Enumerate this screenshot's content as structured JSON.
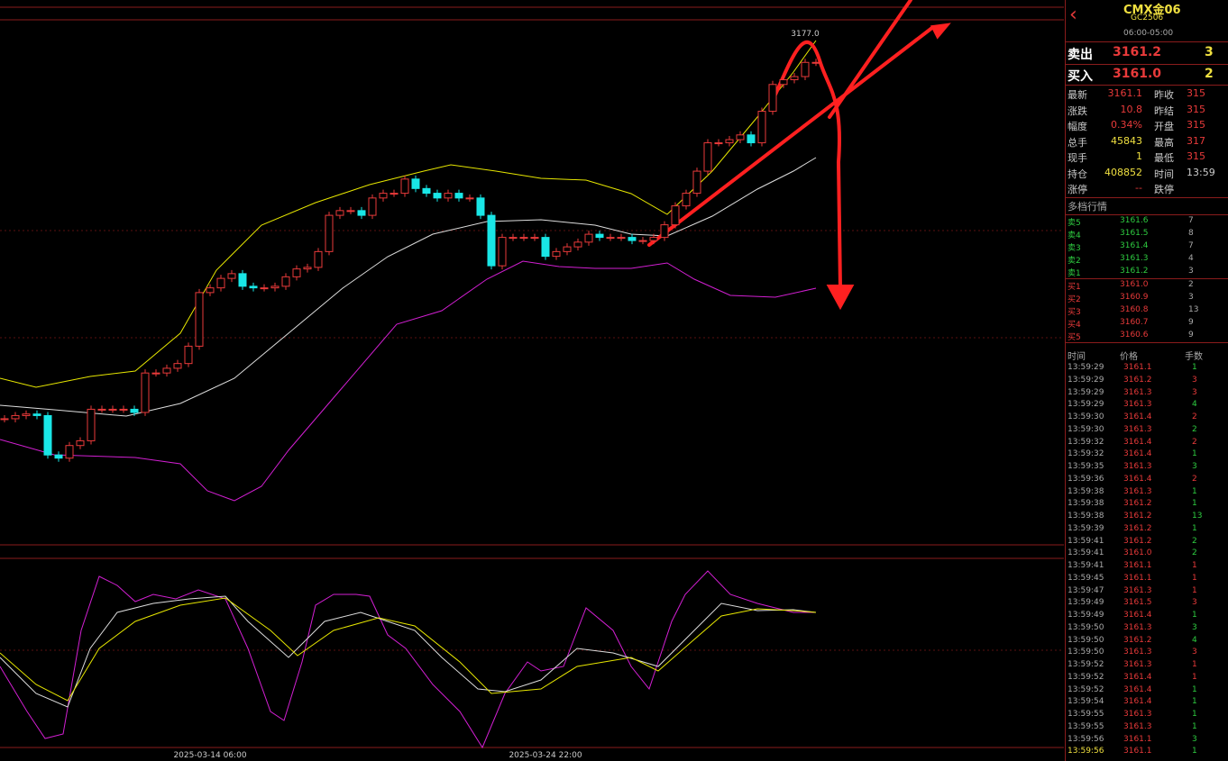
{
  "chart_data": {
    "type": "candlestick",
    "max_label": "3177.0",
    "ylim": [
      2855,
      3188
    ],
    "up_color": "#e83a3a",
    "down_color": "#19e6e6",
    "categories": [
      null,
      null,
      null,
      null,
      null,
      null,
      null,
      null,
      null,
      null,
      null,
      null,
      null,
      null,
      null,
      null,
      null,
      null,
      null,
      "2025-03-14 06:00",
      null,
      null,
      null,
      null,
      null,
      null,
      null,
      null,
      null,
      null,
      null,
      null,
      null,
      null,
      null,
      null,
      null,
      null,
      null,
      null,
      null,
      null,
      null,
      null,
      null,
      null,
      null,
      null,
      null,
      null,
      "2025-03-24 22:00",
      null,
      null,
      null,
      null,
      null,
      null,
      null,
      null,
      null,
      null,
      null,
      null,
      null,
      null,
      null,
      null,
      null,
      null,
      null,
      null,
      null,
      null,
      null,
      null,
      null
    ],
    "values": [
      2935,
      2937,
      2938,
      2937,
      2912,
      2910,
      2918,
      2921,
      2941,
      2941,
      2941,
      2941,
      2939,
      2964,
      2964,
      2967,
      2970,
      2981,
      3015,
      3018,
      3024,
      3027,
      3019,
      3018,
      3018,
      3019,
      3025,
      3030,
      3031,
      3041,
      3064,
      3067,
      3067,
      3064,
      3075,
      3078,
      3078,
      3087,
      3081,
      3078,
      3075,
      3078,
      3075,
      3075,
      3064,
      3032,
      3050,
      3050,
      3050,
      3050,
      3038,
      3041,
      3044,
      3047,
      3052,
      3050,
      3050,
      3050,
      3048,
      3048,
      3050,
      3058,
      3070,
      3078,
      3092,
      3110,
      3110,
      3112,
      3115,
      3110,
      3130,
      3147,
      3150,
      3152,
      3161,
      3161
    ]
  },
  "header": {
    "symbol": "CMX金06",
    "code": "GC2506",
    "hours": "06:00-05:00"
  },
  "quote": {
    "sell": {
      "label": "卖出",
      "price": "3161.2",
      "volume": "3"
    },
    "buy": {
      "label": "买入",
      "price": "3161.0",
      "volume": "2"
    }
  },
  "stats": [
    [
      "最新",
      "3161.1",
      "昨收",
      "315"
    ],
    [
      "涨跌",
      "10.8",
      "昨结",
      "315"
    ],
    [
      "幅度",
      "0.34%",
      "开盘",
      "315"
    ],
    [
      "总手",
      "45843",
      "最高",
      "317"
    ],
    [
      "现手",
      "1",
      "最低",
      "315"
    ],
    [
      "持仓",
      "408852",
      "时间",
      "13:59"
    ],
    [
      "涨停",
      "--",
      "跌停"
    ]
  ],
  "depth": {
    "title": "多档行情",
    "asks": [
      [
        "卖5",
        "3161.6",
        "7"
      ],
      [
        "卖4",
        "3161.5",
        "8"
      ],
      [
        "卖3",
        "3161.4",
        "7"
      ],
      [
        "卖2",
        "3161.3",
        "4"
      ],
      [
        "卖1",
        "3161.2",
        "3"
      ]
    ],
    "bids": [
      [
        "买1",
        "3161.0",
        "2"
      ],
      [
        "买2",
        "3160.9",
        "3"
      ],
      [
        "买3",
        "3160.8",
        "13"
      ],
      [
        "买4",
        "3160.7",
        "9"
      ],
      [
        "买5",
        "3160.6",
        "9"
      ]
    ]
  },
  "ticks": {
    "headers": [
      "时间",
      "价格",
      "手数"
    ],
    "rows": [
      {
        "time": "13:59:29",
        "price": "3161.1",
        "volume": "1",
        "color": "#2ecc40"
      },
      {
        "time": "13:59:29",
        "price": "3161.2",
        "volume": "3",
        "color": "#e83a3a"
      },
      {
        "time": "13:59:29",
        "price": "3161.3",
        "volume": "3",
        "color": "#e83a3a"
      },
      {
        "time": "13:59:29",
        "price": "3161.3",
        "volume": "4",
        "color": "#2ecc40"
      },
      {
        "time": "13:59:30",
        "price": "3161.4",
        "volume": "2",
        "color": "#e83a3a"
      },
      {
        "time": "13:59:30",
        "price": "3161.3",
        "volume": "2",
        "color": "#2ecc40"
      },
      {
        "time": "13:59:32",
        "price": "3161.4",
        "volume": "2",
        "color": "#e83a3a"
      },
      {
        "time": "13:59:32",
        "price": "3161.4",
        "volume": "1",
        "color": "#2ecc40"
      },
      {
        "time": "13:59:35",
        "price": "3161.3",
        "volume": "3",
        "color": "#2ecc40"
      },
      {
        "time": "13:59:36",
        "price": "3161.4",
        "volume": "2",
        "color": "#e83a3a"
      },
      {
        "time": "13:59:38",
        "price": "3161.3",
        "volume": "1",
        "color": "#2ecc40"
      },
      {
        "time": "13:59:38",
        "price": "3161.2",
        "volume": "1",
        "color": "#2ecc40"
      },
      {
        "time": "13:59:38",
        "price": "3161.2",
        "volume": "13",
        "color": "#2ecc40"
      },
      {
        "time": "13:59:39",
        "price": "3161.2",
        "volume": "1",
        "color": "#2ecc40"
      },
      {
        "time": "13:59:41",
        "price": "3161.2",
        "volume": "2",
        "color": "#2ecc40"
      },
      {
        "time": "13:59:41",
        "price": "3161.0",
        "volume": "2",
        "color": "#2ecc40"
      },
      {
        "time": "13:59:41",
        "price": "3161.1",
        "volume": "1",
        "color": "#e83a3a"
      },
      {
        "time": "13:59:45",
        "price": "3161.1",
        "volume": "1",
        "color": "#e83a3a"
      },
      {
        "time": "13:59:47",
        "price": "3161.3",
        "volume": "1",
        "color": "#e83a3a"
      },
      {
        "time": "13:59:49",
        "price": "3161.5",
        "volume": "3",
        "color": "#e83a3a"
      },
      {
        "time": "13:59:49",
        "price": "3161.4",
        "volume": "1",
        "color": "#2ecc40"
      },
      {
        "time": "13:59:50",
        "price": "3161.3",
        "volume": "3",
        "color": "#2ecc40"
      },
      {
        "time": "13:59:50",
        "price": "3161.2",
        "volume": "4",
        "color": "#2ecc40"
      },
      {
        "time": "13:59:50",
        "price": "3161.3",
        "volume": "3",
        "color": "#e83a3a"
      },
      {
        "time": "13:59:52",
        "price": "3161.3",
        "volume": "1",
        "color": "#e83a3a"
      },
      {
        "time": "13:59:52",
        "price": "3161.4",
        "volume": "1",
        "color": "#e83a3a"
      },
      {
        "time": "13:59:52",
        "price": "3161.4",
        "volume": "1",
        "color": "#2ecc40"
      },
      {
        "time": "13:59:54",
        "price": "3161.4",
        "volume": "1",
        "color": "#2ecc40"
      },
      {
        "time": "13:59:55",
        "price": "3161.3",
        "volume": "1",
        "color": "#2ecc40"
      },
      {
        "time": "13:59:55",
        "price": "3161.3",
        "volume": "1",
        "color": "#2ecc40"
      },
      {
        "time": "13:59:56",
        "price": "3161.1",
        "volume": "3",
        "color": "#2ecc40"
      },
      {
        "time": "13:59:56",
        "price": "3161.1",
        "volume": "1",
        "color": "#2ecc40"
      }
    ]
  }
}
